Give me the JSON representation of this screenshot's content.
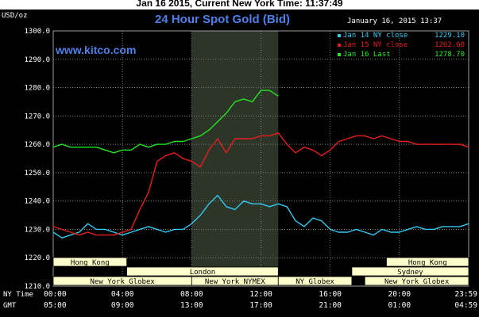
{
  "headline": "Jan 16 2015, Current New York Time: 11:37:49",
  "chart_data": {
    "type": "line",
    "title": "24 Hour Spot Gold (Bid)",
    "watermark": "www.kitco.com",
    "date_stamp": "January 16, 2015 13:37",
    "ylabel": "USD/oz",
    "ylim": [
      1210,
      1300
    ],
    "yticks": [
      "1300.0",
      "1290.0",
      "1280.0",
      "1270.0",
      "1260.0",
      "1250.0",
      "1240.0",
      "1230.0",
      "1220.0",
      "1210.0"
    ],
    "x_rows": [
      {
        "label": "NY Time",
        "ticks": [
          "00:00",
          "04:00",
          "08:00",
          "12:00",
          "16:00",
          "20:00",
          "23:59"
        ]
      },
      {
        "label": "GMT",
        "ticks": [
          "05:00",
          "09:00",
          "13:00",
          "17:00",
          "21:00",
          "01:00",
          "04:59"
        ]
      }
    ],
    "xlim": [
      0,
      24
    ],
    "highlight_hours": [
      8,
      13
    ],
    "sessions": [
      {
        "name": "Hong Kong",
        "start": 0,
        "end": 4.25,
        "row": 0
      },
      {
        "name": "Hong Kong",
        "start": 19.25,
        "end": 24,
        "row": 0
      },
      {
        "name": "London",
        "start": 4.25,
        "end": 13,
        "row": 1
      },
      {
        "name": "Sydney",
        "start": 17.25,
        "end": 24,
        "row": 1
      },
      {
        "name": "New York Globex",
        "start": 0,
        "end": 8,
        "row": 2
      },
      {
        "name": "New York NYMEX",
        "start": 8,
        "end": 13,
        "row": 2
      },
      {
        "name": "NY Globex",
        "start": 13,
        "end": 17.25,
        "row": 2
      },
      {
        "name": "New York Globex",
        "start": 18,
        "end": 24,
        "row": 2
      }
    ],
    "grid": true,
    "legend_position": "top-right",
    "colors": {
      "background": "#000000",
      "grid": "#7a7a7a",
      "axis_text": "#ffffff",
      "title": "#4f7fe8",
      "watermark": "#4f7fe8",
      "session_fill": "#ffffcc",
      "highlight": "#2c3528"
    },
    "series": [
      {
        "name": "Jan 14 NY close",
        "value_label": "1229.10",
        "color": "#33c8f0",
        "x": [
          0,
          0.5,
          1,
          1.5,
          2,
          2.5,
          3,
          3.5,
          4,
          4.5,
          5,
          5.5,
          6,
          6.5,
          7,
          7.5,
          8,
          8.5,
          9,
          9.5,
          10,
          10.5,
          11,
          11.5,
          12,
          12.5,
          13,
          13.5,
          14,
          14.5,
          15,
          15.5,
          16,
          16.5,
          17,
          17.5,
          18,
          18.5,
          19,
          19.5,
          20,
          20.5,
          21,
          21.5,
          22,
          22.5,
          23,
          23.5,
          24
        ],
        "y": [
          1229,
          1227,
          1228,
          1229,
          1232,
          1230,
          1230,
          1229,
          1228,
          1229,
          1230,
          1231,
          1230,
          1229,
          1230,
          1230,
          1232,
          1235,
          1239,
          1242,
          1238,
          1237,
          1240,
          1239,
          1239,
          1238,
          1239,
          1238,
          1233,
          1231,
          1234,
          1233,
          1230,
          1229,
          1229,
          1230,
          1229,
          1228,
          1230,
          1229,
          1229,
          1230,
          1231,
          1230,
          1230,
          1231,
          1231,
          1231,
          1232
        ]
      },
      {
        "name": "Jan 15 NY close",
        "value_label": "1262.60",
        "color": "#e81e1e",
        "x": [
          0,
          0.5,
          1,
          1.5,
          2,
          2.5,
          3,
          3.5,
          4,
          4.5,
          5,
          5.5,
          6,
          6.5,
          7,
          7.5,
          8,
          8.5,
          9,
          9.5,
          10,
          10.5,
          11,
          11.5,
          12,
          12.5,
          13,
          13.5,
          14,
          14.5,
          15,
          15.5,
          16,
          16.5,
          17,
          17.5,
          18,
          18.5,
          19,
          19.5,
          20,
          20.5,
          21,
          21.5,
          22,
          22.5,
          23,
          23.5,
          24
        ],
        "y": [
          1231,
          1230,
          1229,
          1228,
          1229,
          1228,
          1228,
          1228,
          1229,
          1230,
          1237,
          1243,
          1254,
          1256,
          1257,
          1255,
          1254,
          1252,
          1258,
          1262,
          1257,
          1262,
          1262,
          1262,
          1263,
          1263,
          1264,
          1260,
          1257,
          1259,
          1258,
          1256,
          1258,
          1261,
          1262,
          1263,
          1263,
          1262,
          1263,
          1262,
          1261,
          1261,
          1260,
          1260,
          1260,
          1260,
          1260,
          1260,
          1259
        ]
      },
      {
        "name": "Jan 16 Last",
        "value_label": "1278.70",
        "color": "#22e622",
        "x": [
          0,
          0.5,
          1,
          1.5,
          2,
          2.5,
          3,
          3.5,
          4,
          4.5,
          5,
          5.5,
          6,
          6.5,
          7,
          7.5,
          8,
          8.5,
          9,
          9.5,
          10,
          10.5,
          11,
          11.5,
          12,
          12.5,
          13
        ],
        "y": [
          1259,
          1260,
          1259,
          1259,
          1259,
          1259,
          1258,
          1257,
          1258,
          1258,
          1260,
          1259,
          1260,
          1260,
          1261,
          1261,
          1262,
          1263,
          1265,
          1268,
          1271,
          1275,
          1276,
          1275,
          1279,
          1279,
          1277
        ]
      }
    ]
  }
}
